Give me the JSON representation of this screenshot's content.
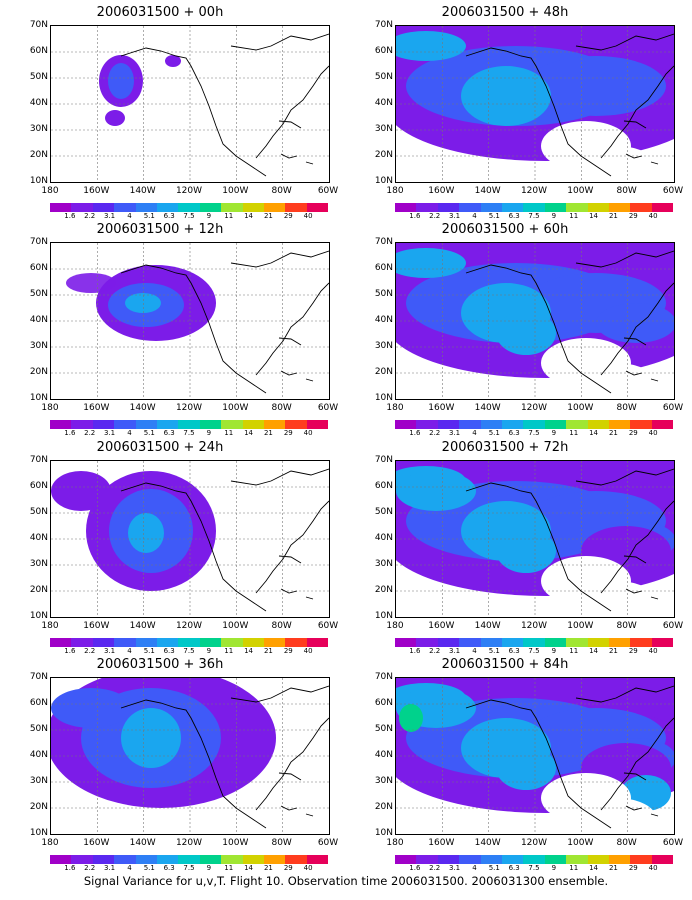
{
  "colorbar": {
    "labels": [
      "1.6",
      "2.2",
      "3.1",
      "4",
      "5.1",
      "6.3",
      "7.5",
      "9",
      "11",
      "14",
      "21",
      "29",
      "40"
    ],
    "colors": [
      "#a000c8",
      "#7c1ce8",
      "#5a28f0",
      "#3f5af8",
      "#2e7ff5",
      "#1aa6ef",
      "#00c8c8",
      "#00d28c",
      "#a0e632",
      "#d2d200",
      "#ffa000",
      "#ff3c1e",
      "#e6005a"
    ]
  },
  "axes": {
    "lat_labels": [
      "70N",
      "60N",
      "50N",
      "40N",
      "30N",
      "20N",
      "10N"
    ],
    "lon_labels": [
      "180",
      "160W",
      "140W",
      "120W",
      "100W",
      "80W",
      "60W"
    ]
  },
  "panels": [
    {
      "title": "2006031500 + 00h",
      "level": 0
    },
    {
      "title": "2006031500 + 48h",
      "level": 4
    },
    {
      "title": "2006031500 + 12h",
      "level": 1
    },
    {
      "title": "2006031500 + 60h",
      "level": 5
    },
    {
      "title": "2006031500 + 24h",
      "level": 2
    },
    {
      "title": "2006031500 + 72h",
      "level": 6
    },
    {
      "title": "2006031500 + 36h",
      "level": 3
    },
    {
      "title": "2006031500 + 84h",
      "level": 7
    }
  ],
  "caption": "Signal Variance for u,v,T. Flight 10. Observation time 2006031500. 2006031300 ensemble."
}
